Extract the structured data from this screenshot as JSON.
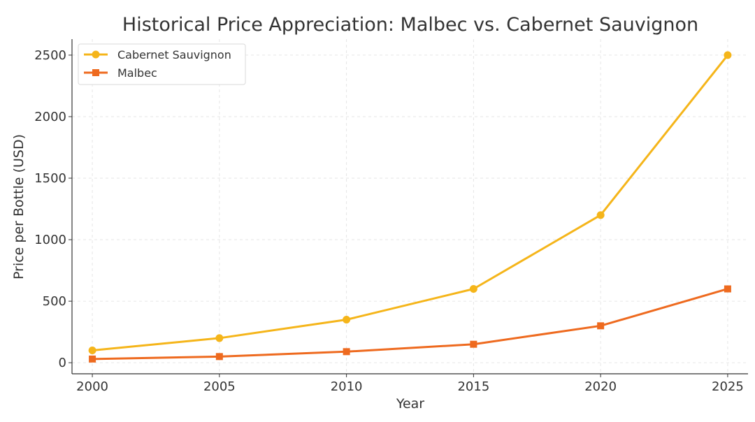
{
  "chart_data": {
    "type": "line",
    "title": "Historical Price Appreciation: Malbec vs. Cabernet Sauvignon",
    "xlabel": "Year",
    "ylabel": "Price per Bottle (USD)",
    "x": [
      2000,
      2005,
      2010,
      2015,
      2020,
      2025
    ],
    "xticks": [
      "2000",
      "2005",
      "2010",
      "2015",
      "2020",
      "2025"
    ],
    "yticks": [
      "0",
      "500",
      "1000",
      "1500",
      "2000",
      "2500"
    ],
    "xlim": [
      1999.2,
      2025.8
    ],
    "ylim": [
      -90,
      2630
    ],
    "grid": true,
    "legend_position": "top-left",
    "series": [
      {
        "name": "Cabernet Sauvignon",
        "color": "#F5B51A",
        "marker": "circle",
        "values": [
          100,
          200,
          350,
          600,
          1200,
          2500
        ]
      },
      {
        "name": "Malbec",
        "color": "#EE6A1F",
        "marker": "square",
        "values": [
          30,
          50,
          90,
          150,
          300,
          600
        ]
      }
    ]
  }
}
